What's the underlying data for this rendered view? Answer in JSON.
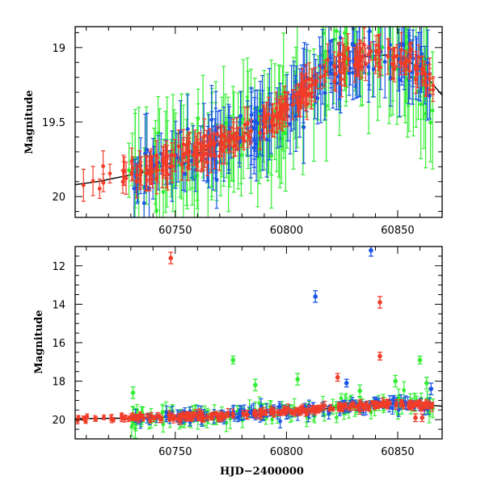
{
  "chart_data": [
    {
      "type": "scatter",
      "title": "",
      "xlabel": "",
      "ylabel": "Magnitude",
      "xlim": [
        60705,
        60870
      ],
      "ylim": [
        20.14,
        18.86
      ],
      "y_inverted": true,
      "grid": false,
      "legend": "none",
      "x_ticks": [
        60750,
        60800,
        60850
      ],
      "y_ticks": [
        19,
        19.5,
        20
      ],
      "x_tick_labels": [
        "60750",
        "60800",
        "60850"
      ],
      "y_tick_labels": [
        "19",
        "19.5",
        "20"
      ],
      "model_curve": {
        "color": "#000000",
        "x": [
          60705,
          60715,
          60725,
          60735,
          60745,
          60755,
          60765,
          60775,
          60785,
          60795,
          60805,
          60815,
          60825,
          60835,
          60845,
          60855,
          60862,
          60870
        ],
        "y": [
          19.92,
          19.9,
          19.87,
          19.84,
          19.79,
          19.74,
          19.68,
          19.62,
          19.55,
          19.46,
          19.34,
          19.2,
          19.11,
          19.06,
          19.05,
          19.09,
          19.18,
          19.32
        ]
      },
      "series": [
        {
          "band": "green",
          "color": "#33ee33"
        },
        {
          "band": "blue",
          "color": "#1a55e6"
        },
        {
          "band": "red",
          "color": "#f03c28"
        }
      ]
    },
    {
      "type": "scatter",
      "title": "",
      "xlabel": "HJD−2400000",
      "ylabel": "Magnitude",
      "xlim": [
        60705,
        60870
      ],
      "ylim": [
        21,
        11
      ],
      "y_inverted": true,
      "grid": false,
      "legend": "none",
      "x_ticks": [
        60750,
        60800,
        60850
      ],
      "y_ticks": [
        12,
        14,
        16,
        18,
        20
      ],
      "x_tick_labels": [
        "60750",
        "60800",
        "60850"
      ],
      "y_tick_labels": [
        "12",
        "14",
        "16",
        "18",
        "20"
      ],
      "model_curve": {
        "color": "#000000",
        "x": [
          60705,
          60725,
          60745,
          60765,
          60785,
          60805,
          60825,
          60845,
          60865,
          60870
        ],
        "y": [
          19.95,
          19.93,
          19.88,
          19.8,
          19.7,
          19.55,
          19.35,
          19.2,
          19.25,
          19.3
        ]
      },
      "outliers": [
        {
          "band": "red",
          "x": 60748,
          "y": 11.6,
          "err": 0.3
        },
        {
          "band": "blue",
          "x": 60838,
          "y": 11.2,
          "err": 0.3
        },
        {
          "band": "blue",
          "x": 60813,
          "y": 13.6,
          "err": 0.3
        },
        {
          "band": "red",
          "x": 60842,
          "y": 13.9,
          "err": 0.3
        },
        {
          "band": "red",
          "x": 60842,
          "y": 16.7,
          "err": 0.2
        },
        {
          "band": "green",
          "x": 60776,
          "y": 16.9,
          "err": 0.2
        },
        {
          "band": "green",
          "x": 60860,
          "y": 16.9,
          "err": 0.2
        },
        {
          "band": "red",
          "x": 60823,
          "y": 17.8,
          "err": 0.2
        },
        {
          "band": "green",
          "x": 60805,
          "y": 17.9,
          "err": 0.3
        },
        {
          "band": "green",
          "x": 60786,
          "y": 18.2,
          "err": 0.3
        },
        {
          "band": "blue",
          "x": 60827,
          "y": 18.1,
          "err": 0.2
        },
        {
          "band": "green",
          "x": 60849,
          "y": 18.0,
          "err": 0.3
        },
        {
          "band": "green",
          "x": 60863,
          "y": 18.1,
          "err": 0.3
        },
        {
          "band": "blue",
          "x": 60865,
          "y": 18.4,
          "err": 0.3
        },
        {
          "band": "green",
          "x": 60731,
          "y": 18.6,
          "err": 0.3
        },
        {
          "band": "green",
          "x": 60833,
          "y": 18.5,
          "err": 0.3
        },
        {
          "band": "red",
          "x": 60858,
          "y": 19.9,
          "err": 0.2
        },
        {
          "band": "red",
          "x": 60861,
          "y": 19.9,
          "err": 0.2
        }
      ],
      "series": [
        {
          "band": "green",
          "color": "#33ee33"
        },
        {
          "band": "blue",
          "color": "#1a55e6"
        },
        {
          "band": "red",
          "color": "#f03c28"
        }
      ]
    }
  ]
}
